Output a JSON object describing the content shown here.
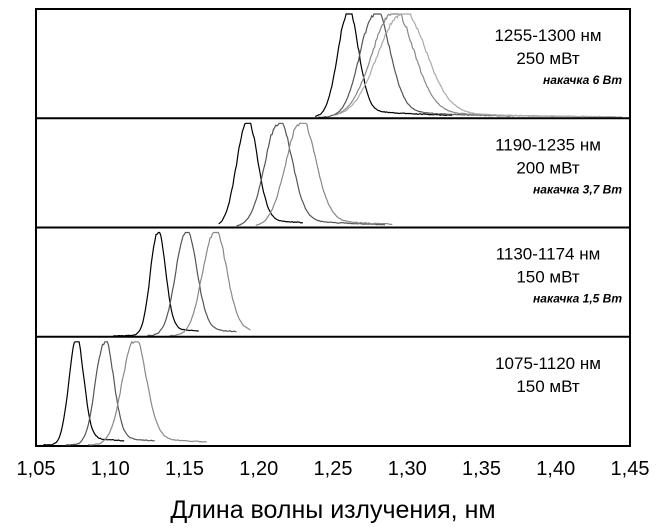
{
  "chart_data": {
    "type": "line",
    "xlabel": "Длина волны излучения, нм",
    "xlim": [
      1.05,
      1.45
    ],
    "x_ticks": [
      "1,05",
      "1,10",
      "1,15",
      "1,20",
      "1,25",
      "1,30",
      "1,35",
      "1,40",
      "1,45"
    ],
    "x_tick_values": [
      1.05,
      1.1,
      1.15,
      1.2,
      1.25,
      1.3,
      1.35,
      1.4,
      1.45
    ],
    "grid": false,
    "series_colors": [
      "#000000",
      "#555555",
      "#888888",
      "#aaaaaa"
    ],
    "panels": [
      {
        "range_label": "1255-1300 нм",
        "power_label": "250 мВт",
        "pump_label": "накачка 6 Вт",
        "series": [
          {
            "center": 1.26,
            "width": 0.007,
            "start": 1.238,
            "end": 1.33
          },
          {
            "center": 1.278,
            "width": 0.01,
            "start": 1.24,
            "end": 1.37
          },
          {
            "center": 1.29,
            "width": 0.014,
            "start": 1.25,
            "end": 1.44
          },
          {
            "center": 1.296,
            "width": 0.016,
            "start": 1.255,
            "end": 1.445
          }
        ]
      },
      {
        "range_label": "1190-1235 нм",
        "power_label": "200 мВт",
        "pump_label": "накачка 3,7 Вт",
        "series": [
          {
            "center": 1.192,
            "width": 0.007,
            "start": 1.173,
            "end": 1.23
          },
          {
            "center": 1.213,
            "width": 0.009,
            "start": 1.185,
            "end": 1.285
          },
          {
            "center": 1.228,
            "width": 0.01,
            "start": 1.198,
            "end": 1.29
          }
        ]
      },
      {
        "range_label": "1130-1174 нм",
        "power_label": "150 мВт",
        "pump_label": "накачка 1,5 Вт",
        "series": [
          {
            "center": 1.132,
            "width": 0.005,
            "start": 1.102,
            "end": 1.16
          },
          {
            "center": 1.151,
            "width": 0.007,
            "start": 1.125,
            "end": 1.185
          },
          {
            "center": 1.17,
            "width": 0.008,
            "start": 1.14,
            "end": 1.195
          }
        ]
      },
      {
        "range_label": "1075-1120 нм",
        "power_label": "150 мВт",
        "pump_label": "",
        "series": [
          {
            "center": 1.077,
            "width": 0.005,
            "start": 1.055,
            "end": 1.11
          },
          {
            "center": 1.096,
            "width": 0.006,
            "start": 1.07,
            "end": 1.13
          },
          {
            "center": 1.116,
            "width": 0.008,
            "start": 1.085,
            "end": 1.165
          }
        ]
      }
    ]
  }
}
